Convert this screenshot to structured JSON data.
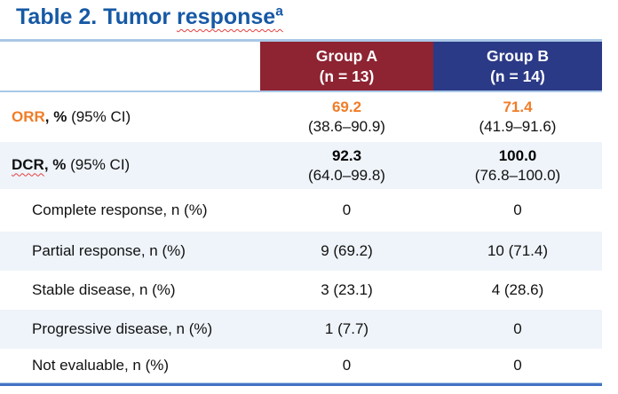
{
  "title": {
    "prefix": "Table 2. Tumor ",
    "misspelled": "response",
    "superscript": "a"
  },
  "colors": {
    "title_blue": "#1659A5",
    "group_a_header_bg": "#8E2332",
    "group_b_header_bg": "#2B3A87",
    "accent_orange": "#F07D28",
    "row_stripe": "#EFF4FA",
    "light_rule_blue": "#A9C7E7",
    "bottom_border_blue": "#4472C4",
    "spellcheck_red": "#E43F3F"
  },
  "table": {
    "header": {
      "groups": [
        {
          "name": "Group A",
          "n": "(n = 13)"
        },
        {
          "name": "Group B",
          "n": "(n = 14)"
        }
      ]
    },
    "rows": [
      {
        "label_em": "ORR",
        "label_bold": ", %",
        "label_rest": " (95% CI)",
        "group_a": {
          "main": "69.2",
          "sub": "(38.6–90.9)"
        },
        "group_b": {
          "main": "71.4",
          "sub": "(41.9–91.6)"
        }
      },
      {
        "label_em": "DCR",
        "label_bold": ", %",
        "label_rest": " (95% CI)",
        "group_a": {
          "main": "92.3",
          "sub": "(64.0–99.8)"
        },
        "group_b": {
          "main": "100.0",
          "sub": "(76.8–100.0)"
        }
      },
      {
        "label_em": "",
        "label_bold": "",
        "label_rest": "Complete response, n (%)",
        "group_a": {
          "main": "0",
          "sub": ""
        },
        "group_b": {
          "main": "0",
          "sub": ""
        }
      },
      {
        "label_em": "",
        "label_bold": "",
        "label_rest": "Partial response, n (%)",
        "group_a": {
          "main": "9 (69.2)",
          "sub": ""
        },
        "group_b": {
          "main": "10 (71.4)",
          "sub": ""
        }
      },
      {
        "label_em": "",
        "label_bold": "",
        "label_rest": "Stable disease, n (%)",
        "group_a": {
          "main": "3 (23.1)",
          "sub": ""
        },
        "group_b": {
          "main": "4 (28.6)",
          "sub": ""
        }
      },
      {
        "label_em": "",
        "label_bold": "",
        "label_rest": "Progressive disease, n (%)",
        "group_a": {
          "main": "1 (7.7)",
          "sub": ""
        },
        "group_b": {
          "main": "0",
          "sub": ""
        }
      },
      {
        "label_em": "",
        "label_bold": "",
        "label_rest": "Not evaluable, n (%)",
        "group_a": {
          "main": "0",
          "sub": ""
        },
        "group_b": {
          "main": "0",
          "sub": ""
        }
      }
    ]
  }
}
